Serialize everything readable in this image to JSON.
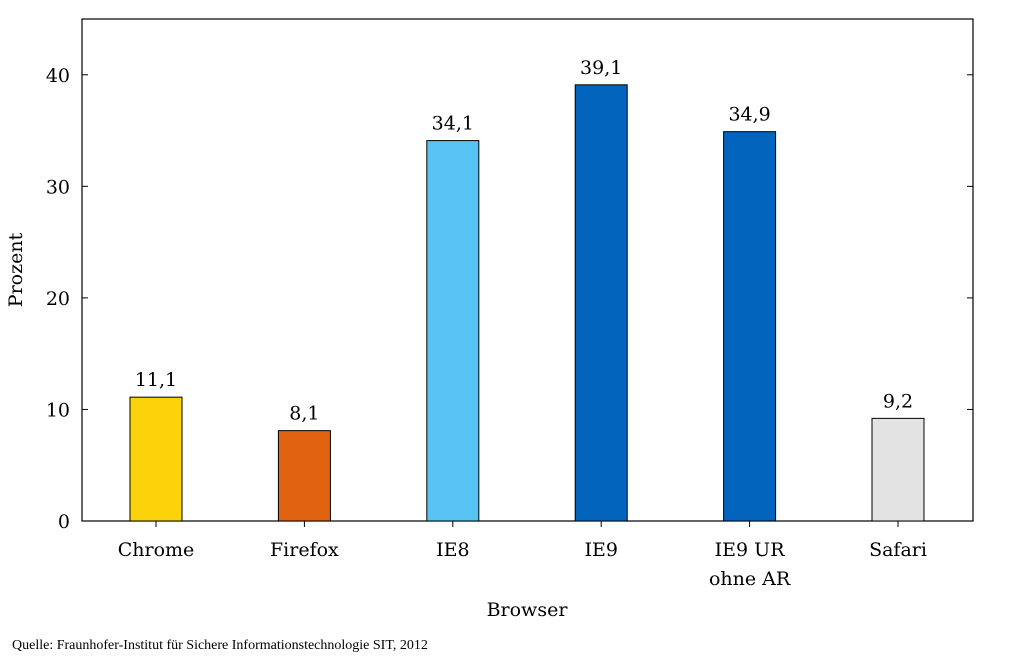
{
  "chart_data": {
    "type": "bar",
    "categories": [
      "Chrome",
      "Firefox",
      "IE8",
      "IE9",
      "IE9 UR\nohne AR",
      "Safari"
    ],
    "values": [
      11.1,
      8.1,
      34.1,
      39.1,
      34.9,
      9.2
    ],
    "value_labels": [
      "11,1",
      "8,1",
      "34,1",
      "39,1",
      "34,9",
      "9,2"
    ],
    "bar_colors": [
      "#fcd20a",
      "#e2630f",
      "#56c3f3",
      "#0364be",
      "#0364be",
      "#e3e3e3"
    ],
    "xlabel": "Browser",
    "ylabel": "Prozent",
    "ylim": [
      0,
      45
    ],
    "yticks": [
      0,
      10,
      20,
      30,
      40
    ],
    "grid": false,
    "legend": "none"
  },
  "source_note": "Quelle: Fraunhofer-Institut für Sichere Informationstechnologie SIT, 2012"
}
